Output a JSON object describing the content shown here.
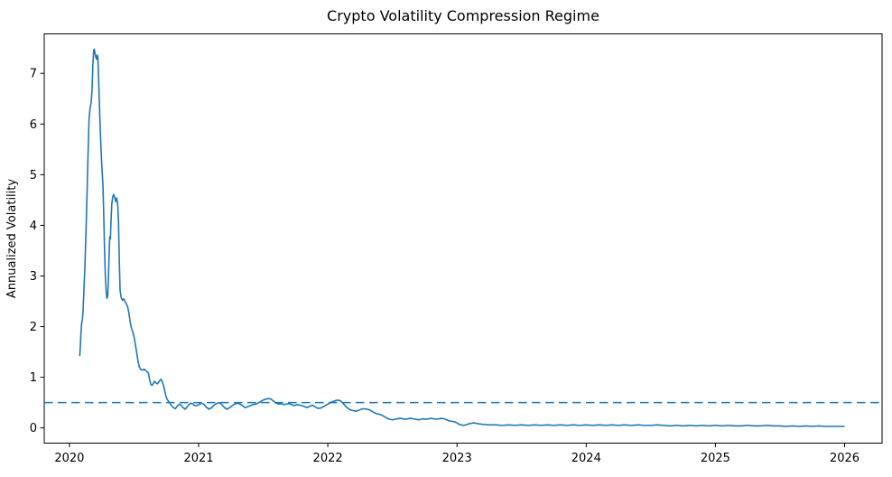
{
  "chart_data": {
    "type": "line",
    "title": "Crypto Volatility Compression Regime",
    "xlabel": "",
    "ylabel": "Annualized Volatility",
    "xlim": [
      2019.805,
      2026.29
    ],
    "ylim": [
      -0.3,
      7.78
    ],
    "x_tick_values": [
      2020,
      2021,
      2022,
      2023,
      2024,
      2025,
      2026
    ],
    "x_tick_labels": [
      "2020",
      "2021",
      "2022",
      "2023",
      "2024",
      "2025",
      "2026"
    ],
    "y_tick_values": [
      0,
      1,
      2,
      3,
      4,
      5,
      6,
      7
    ],
    "y_tick_labels": [
      "0",
      "1",
      "2",
      "3",
      "4",
      "5",
      "6",
      "7"
    ],
    "grid": false,
    "legend": "none",
    "line_color": "#1f77b4",
    "axis_color": "#000000",
    "reference_lines": [
      {
        "y": 0.5,
        "color": "#1f77b4",
        "linestyle": "dashed",
        "name": "volatility-threshold"
      }
    ],
    "series": [
      {
        "name": "annualized-volatility",
        "color": "#1f77b4",
        "points": [
          [
            2020.08,
            1.42
          ],
          [
            2020.085,
            1.65
          ],
          [
            2020.09,
            1.9
          ],
          [
            2020.095,
            2.08
          ],
          [
            2020.1,
            2.13
          ],
          [
            2020.105,
            2.3
          ],
          [
            2020.112,
            2.7
          ],
          [
            2020.12,
            3.2
          ],
          [
            2020.128,
            3.85
          ],
          [
            2020.136,
            4.6
          ],
          [
            2020.144,
            5.4
          ],
          [
            2020.152,
            6.1
          ],
          [
            2020.16,
            6.32
          ],
          [
            2020.168,
            6.42
          ],
          [
            2020.175,
            6.68
          ],
          [
            2020.182,
            7.2
          ],
          [
            2020.188,
            7.46
          ],
          [
            2020.192,
            7.48
          ],
          [
            2020.198,
            7.4
          ],
          [
            2020.204,
            7.32
          ],
          [
            2020.21,
            7.28
          ],
          [
            2020.215,
            7.36
          ],
          [
            2020.22,
            7.32
          ],
          [
            2020.226,
            6.9
          ],
          [
            2020.232,
            6.4
          ],
          [
            2020.238,
            5.95
          ],
          [
            2020.244,
            5.55
          ],
          [
            2020.25,
            5.2
          ],
          [
            2020.255,
            5.0
          ],
          [
            2020.26,
            4.75
          ],
          [
            2020.266,
            4.15
          ],
          [
            2020.272,
            3.5
          ],
          [
            2020.278,
            3.0
          ],
          [
            2020.284,
            2.72
          ],
          [
            2020.29,
            2.56
          ],
          [
            2020.296,
            2.6
          ],
          [
            2020.302,
            2.95
          ],
          [
            2020.308,
            3.5
          ],
          [
            2020.312,
            3.77
          ],
          [
            2020.317,
            3.73
          ],
          [
            2020.322,
            4.1
          ],
          [
            2020.328,
            4.42
          ],
          [
            2020.335,
            4.56
          ],
          [
            2020.342,
            4.61
          ],
          [
            2020.35,
            4.56
          ],
          [
            2020.358,
            4.47
          ],
          [
            2020.366,
            4.54
          ],
          [
            2020.374,
            4.4
          ],
          [
            2020.38,
            4.05
          ],
          [
            2020.386,
            3.3
          ],
          [
            2020.392,
            2.72
          ],
          [
            2020.4,
            2.58
          ],
          [
            2020.41,
            2.52
          ],
          [
            2020.42,
            2.55
          ],
          [
            2020.43,
            2.5
          ],
          [
            2020.44,
            2.45
          ],
          [
            2020.45,
            2.4
          ],
          [
            2020.46,
            2.27
          ],
          [
            2020.47,
            2.1
          ],
          [
            2020.48,
            1.97
          ],
          [
            2020.49,
            1.9
          ],
          [
            2020.5,
            1.8
          ],
          [
            2020.51,
            1.65
          ],
          [
            2020.52,
            1.5
          ],
          [
            2020.53,
            1.33
          ],
          [
            2020.54,
            1.21
          ],
          [
            2020.55,
            1.16
          ],
          [
            2020.565,
            1.14
          ],
          [
            2020.58,
            1.16
          ],
          [
            2020.595,
            1.12
          ],
          [
            2020.61,
            1.09
          ],
          [
            2020.62,
            0.96
          ],
          [
            2020.63,
            0.86
          ],
          [
            2020.64,
            0.84
          ],
          [
            2020.65,
            0.88
          ],
          [
            2020.66,
            0.92
          ],
          [
            2020.67,
            0.89
          ],
          [
            2020.68,
            0.87
          ],
          [
            2020.69,
            0.9
          ],
          [
            2020.7,
            0.94
          ],
          [
            2020.71,
            0.96
          ],
          [
            2020.72,
            0.9
          ],
          [
            2020.73,
            0.82
          ],
          [
            2020.74,
            0.7
          ],
          [
            2020.75,
            0.6
          ],
          [
            2020.76,
            0.55
          ],
          [
            2020.77,
            0.52
          ],
          [
            2020.78,
            0.48
          ],
          [
            2020.79,
            0.44
          ],
          [
            2020.805,
            0.4
          ],
          [
            2020.82,
            0.38
          ],
          [
            2020.835,
            0.43
          ],
          [
            2020.85,
            0.47
          ],
          [
            2020.865,
            0.45
          ],
          [
            2020.88,
            0.4
          ],
          [
            2020.895,
            0.37
          ],
          [
            2020.91,
            0.41
          ],
          [
            2020.925,
            0.46
          ],
          [
            2020.94,
            0.49
          ],
          [
            2020.955,
            0.47
          ],
          [
            2020.97,
            0.44
          ],
          [
            2020.985,
            0.44
          ],
          [
            2021.0,
            0.46
          ],
          [
            2021.02,
            0.49
          ],
          [
            2021.04,
            0.47
          ],
          [
            2021.06,
            0.41
          ],
          [
            2021.08,
            0.37
          ],
          [
            2021.1,
            0.4
          ],
          [
            2021.12,
            0.45
          ],
          [
            2021.14,
            0.48
          ],
          [
            2021.16,
            0.5
          ],
          [
            2021.18,
            0.46
          ],
          [
            2021.2,
            0.4
          ],
          [
            2021.22,
            0.37
          ],
          [
            2021.24,
            0.4
          ],
          [
            2021.26,
            0.44
          ],
          [
            2021.28,
            0.47
          ],
          [
            2021.3,
            0.49
          ],
          [
            2021.32,
            0.47
          ],
          [
            2021.34,
            0.44
          ],
          [
            2021.36,
            0.4
          ],
          [
            2021.38,
            0.42
          ],
          [
            2021.4,
            0.44
          ],
          [
            2021.42,
            0.46
          ],
          [
            2021.44,
            0.47
          ],
          [
            2021.46,
            0.49
          ],
          [
            2021.48,
            0.52
          ],
          [
            2021.5,
            0.55
          ],
          [
            2021.52,
            0.57
          ],
          [
            2021.54,
            0.58
          ],
          [
            2021.56,
            0.57
          ],
          [
            2021.58,
            0.53
          ],
          [
            2021.6,
            0.49
          ],
          [
            2021.62,
            0.47
          ],
          [
            2021.64,
            0.48
          ],
          [
            2021.66,
            0.46
          ],
          [
            2021.68,
            0.47
          ],
          [
            2021.7,
            0.48
          ],
          [
            2021.72,
            0.46
          ],
          [
            2021.74,
            0.44
          ],
          [
            2021.76,
            0.46
          ],
          [
            2021.78,
            0.45
          ],
          [
            2021.8,
            0.44
          ],
          [
            2021.82,
            0.42
          ],
          [
            2021.84,
            0.4
          ],
          [
            2021.86,
            0.43
          ],
          [
            2021.88,
            0.45
          ],
          [
            2021.9,
            0.42
          ],
          [
            2021.92,
            0.39
          ],
          [
            2021.94,
            0.39
          ],
          [
            2021.96,
            0.41
          ],
          [
            2021.98,
            0.44
          ],
          [
            2022.0,
            0.47
          ],
          [
            2022.02,
            0.5
          ],
          [
            2022.04,
            0.52
          ],
          [
            2022.06,
            0.54
          ],
          [
            2022.08,
            0.55
          ],
          [
            2022.1,
            0.53
          ],
          [
            2022.12,
            0.48
          ],
          [
            2022.14,
            0.42
          ],
          [
            2022.16,
            0.38
          ],
          [
            2022.18,
            0.35
          ],
          [
            2022.2,
            0.34
          ],
          [
            2022.22,
            0.33
          ],
          [
            2022.24,
            0.35
          ],
          [
            2022.26,
            0.37
          ],
          [
            2022.28,
            0.38
          ],
          [
            2022.3,
            0.37
          ],
          [
            2022.32,
            0.36
          ],
          [
            2022.34,
            0.33
          ],
          [
            2022.36,
            0.3
          ],
          [
            2022.38,
            0.28
          ],
          [
            2022.4,
            0.27
          ],
          [
            2022.42,
            0.25
          ],
          [
            2022.44,
            0.22
          ],
          [
            2022.46,
            0.19
          ],
          [
            2022.48,
            0.17
          ],
          [
            2022.5,
            0.16
          ],
          [
            2022.52,
            0.17
          ],
          [
            2022.54,
            0.18
          ],
          [
            2022.56,
            0.19
          ],
          [
            2022.58,
            0.18
          ],
          [
            2022.6,
            0.17
          ],
          [
            2022.62,
            0.18
          ],
          [
            2022.64,
            0.19
          ],
          [
            2022.66,
            0.18
          ],
          [
            2022.68,
            0.17
          ],
          [
            2022.7,
            0.16
          ],
          [
            2022.72,
            0.17
          ],
          [
            2022.74,
            0.18
          ],
          [
            2022.76,
            0.17
          ],
          [
            2022.78,
            0.18
          ],
          [
            2022.8,
            0.19
          ],
          [
            2022.82,
            0.18
          ],
          [
            2022.84,
            0.17
          ],
          [
            2022.86,
            0.18
          ],
          [
            2022.88,
            0.19
          ],
          [
            2022.9,
            0.18
          ],
          [
            2022.92,
            0.16
          ],
          [
            2022.94,
            0.14
          ],
          [
            2022.96,
            0.13
          ],
          [
            2022.98,
            0.12
          ],
          [
            2023.0,
            0.1
          ],
          [
            2023.01,
            0.08
          ],
          [
            2023.03,
            0.06
          ],
          [
            2023.05,
            0.05
          ],
          [
            2023.07,
            0.06
          ],
          [
            2023.09,
            0.08
          ],
          [
            2023.11,
            0.09
          ],
          [
            2023.13,
            0.1
          ],
          [
            2023.15,
            0.09
          ],
          [
            2023.17,
            0.08
          ],
          [
            2023.2,
            0.07
          ],
          [
            2023.25,
            0.06
          ],
          [
            2023.3,
            0.06
          ],
          [
            2023.35,
            0.05
          ],
          [
            2023.4,
            0.06
          ],
          [
            2023.45,
            0.05
          ],
          [
            2023.5,
            0.06
          ],
          [
            2023.55,
            0.05
          ],
          [
            2023.6,
            0.06
          ],
          [
            2023.65,
            0.05
          ],
          [
            2023.7,
            0.06
          ],
          [
            2023.75,
            0.05
          ],
          [
            2023.8,
            0.06
          ],
          [
            2023.85,
            0.05
          ],
          [
            2023.9,
            0.06
          ],
          [
            2023.95,
            0.05
          ],
          [
            2024.0,
            0.06
          ],
          [
            2024.05,
            0.05
          ],
          [
            2024.1,
            0.06
          ],
          [
            2024.15,
            0.05
          ],
          [
            2024.2,
            0.06
          ],
          [
            2024.25,
            0.05
          ],
          [
            2024.3,
            0.06
          ],
          [
            2024.35,
            0.05
          ],
          [
            2024.4,
            0.06
          ],
          [
            2024.45,
            0.05
          ],
          [
            2024.5,
            0.05
          ],
          [
            2024.55,
            0.06
          ],
          [
            2024.6,
            0.05
          ],
          [
            2024.65,
            0.04
          ],
          [
            2024.7,
            0.05
          ],
          [
            2024.75,
            0.04
          ],
          [
            2024.8,
            0.05
          ],
          [
            2024.85,
            0.04
          ],
          [
            2024.9,
            0.05
          ],
          [
            2024.95,
            0.04
          ],
          [
            2025.0,
            0.05
          ],
          [
            2025.05,
            0.04
          ],
          [
            2025.1,
            0.05
          ],
          [
            2025.15,
            0.04
          ],
          [
            2025.2,
            0.04
          ],
          [
            2025.25,
            0.05
          ],
          [
            2025.3,
            0.04
          ],
          [
            2025.35,
            0.04
          ],
          [
            2025.4,
            0.05
          ],
          [
            2025.45,
            0.04
          ],
          [
            2025.5,
            0.04
          ],
          [
            2025.55,
            0.03
          ],
          [
            2025.6,
            0.04
          ],
          [
            2025.65,
            0.03
          ],
          [
            2025.7,
            0.04
          ],
          [
            2025.75,
            0.03
          ],
          [
            2025.8,
            0.04
          ],
          [
            2025.85,
            0.03
          ],
          [
            2025.9,
            0.03
          ],
          [
            2025.95,
            0.03
          ],
          [
            2026.0,
            0.03
          ]
        ]
      }
    ]
  }
}
